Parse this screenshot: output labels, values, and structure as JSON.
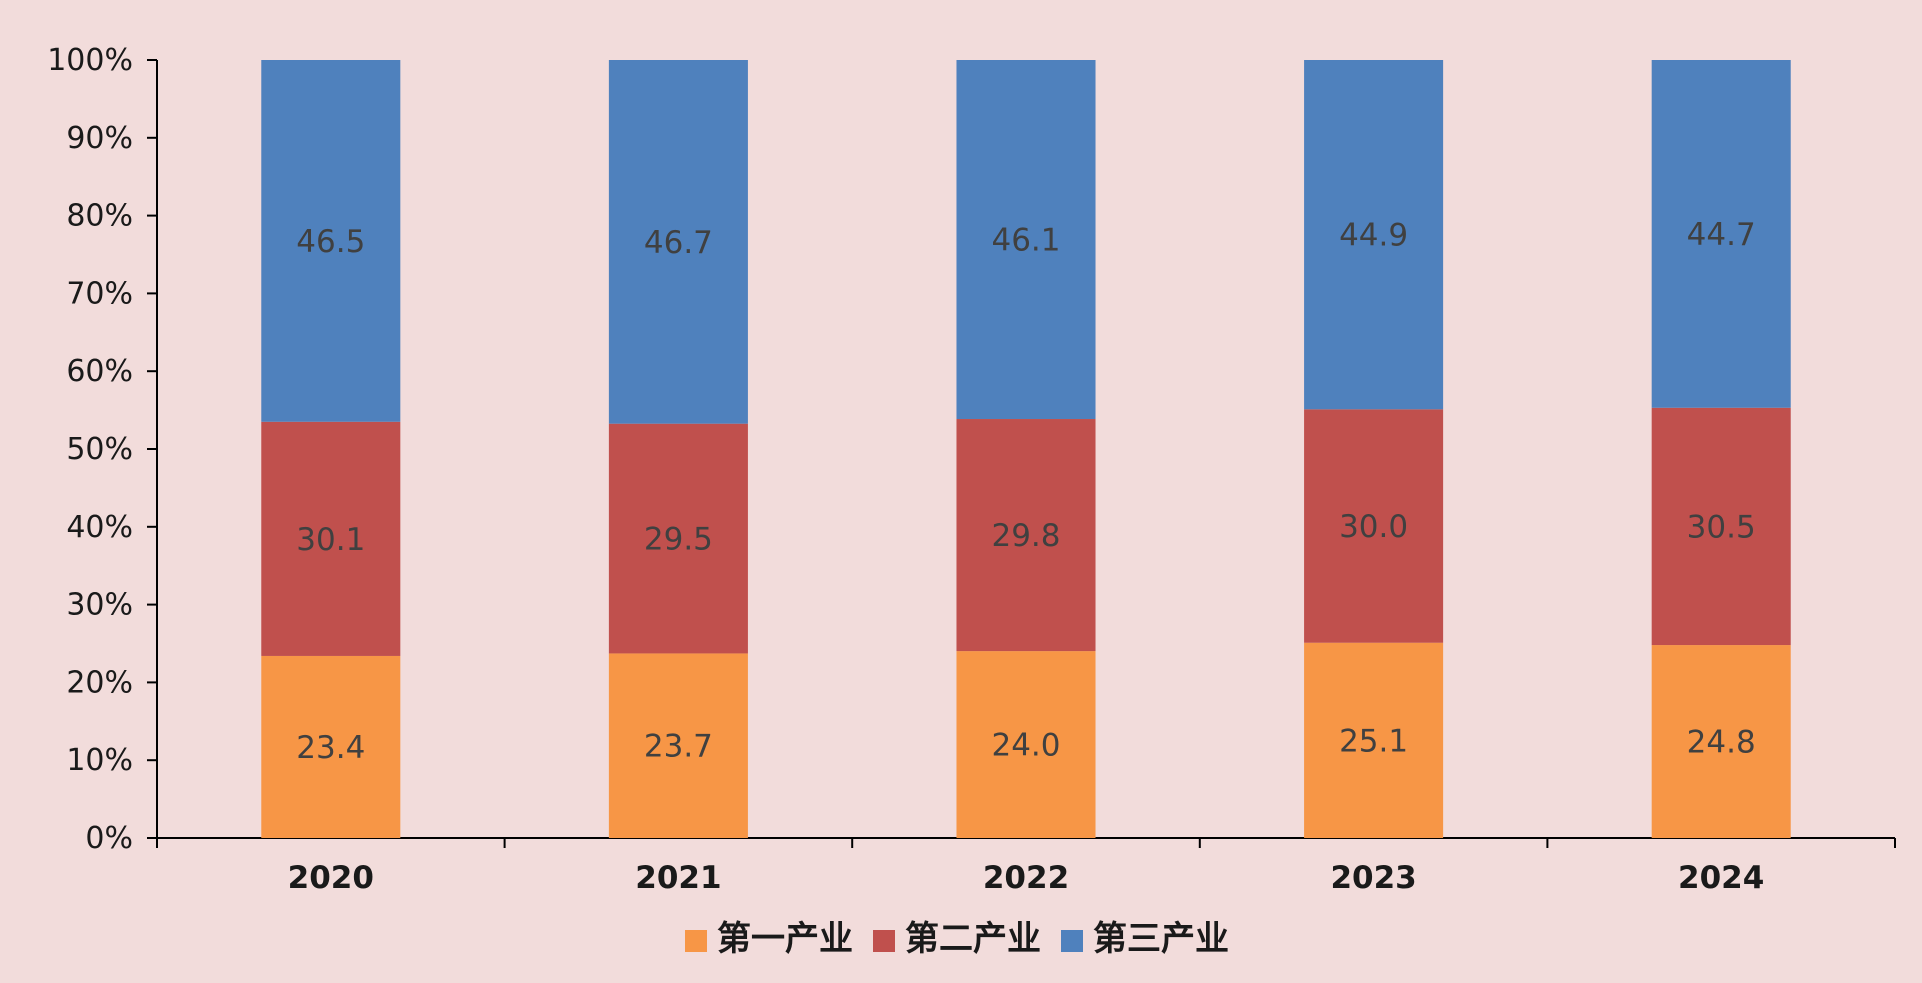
{
  "chart_data": {
    "type": "bar",
    "stacked": "percent",
    "title": "",
    "xlabel": "",
    "ylabel": "",
    "categories": [
      "2020",
      "2021",
      "2022",
      "2023",
      "2024"
    ],
    "series": [
      {
        "name": "第一产业",
        "color": "#f79646",
        "values": [
          23.4,
          23.7,
          24.0,
          25.1,
          24.8
        ]
      },
      {
        "name": "第二产业",
        "color": "#c0504d",
        "values": [
          30.1,
          29.5,
          29.8,
          30.0,
          30.5
        ]
      },
      {
        "name": "第三产业",
        "color": "#4f81bd",
        "values": [
          46.5,
          46.7,
          46.1,
          44.9,
          44.7
        ]
      }
    ],
    "ylim": [
      0,
      100
    ],
    "yticks": [
      "0%",
      "10%",
      "20%",
      "30%",
      "40%",
      "50%",
      "60%",
      "70%",
      "80%",
      "90%",
      "100%"
    ],
    "grid": false,
    "legend_position": "bottom"
  }
}
